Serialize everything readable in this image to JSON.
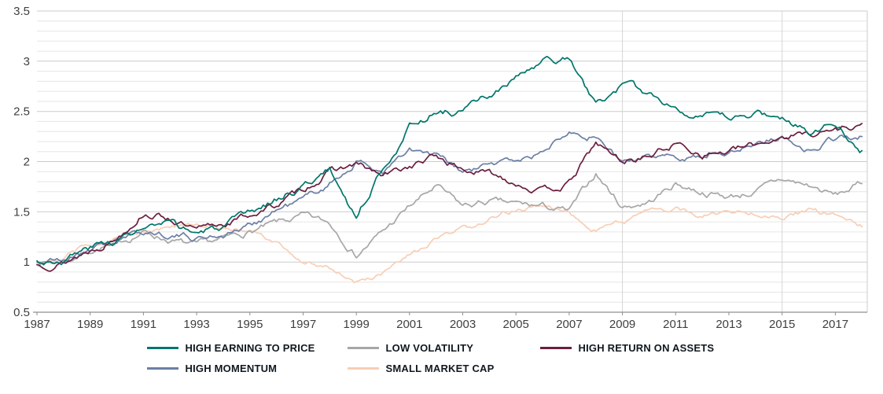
{
  "chart_data": {
    "type": "line",
    "title": "",
    "x": [
      1987,
      1988,
      1989,
      1990,
      1991,
      1992,
      1993,
      1994,
      1995,
      1996,
      1997,
      1998,
      1999,
      2000,
      2001,
      2002,
      2003,
      2004,
      2005,
      2006,
      2007,
      2008,
      2009,
      2010,
      2011,
      2012,
      2013,
      2014,
      2015,
      2016,
      2017,
      2018
    ],
    "series": [
      {
        "id": "high-earning-to-price",
        "name": "HIGH EARNING TO PRICE",
        "color": "#00766b",
        "values": [
          1.0,
          1.03,
          1.14,
          1.22,
          1.33,
          1.36,
          1.29,
          1.34,
          1.46,
          1.63,
          1.76,
          1.92,
          1.45,
          1.95,
          2.35,
          2.5,
          2.5,
          2.65,
          2.82,
          2.98,
          3.02,
          2.55,
          2.76,
          2.66,
          2.55,
          2.46,
          2.41,
          2.49,
          2.43,
          2.31,
          2.42,
          2.11
        ]
      },
      {
        "id": "low-volatility",
        "name": "LOW VOLATILITY",
        "color": "#a7a7a7",
        "values": [
          1.0,
          1.0,
          1.12,
          1.18,
          1.3,
          1.22,
          1.15,
          1.22,
          1.3,
          1.38,
          1.45,
          1.38,
          1.08,
          1.3,
          1.55,
          1.75,
          1.55,
          1.6,
          1.57,
          1.55,
          1.5,
          1.88,
          1.55,
          1.6,
          1.78,
          1.7,
          1.65,
          1.7,
          1.82,
          1.76,
          1.66,
          1.78
        ]
      },
      {
        "id": "high-return-on-assets",
        "name": "HIGH RETURN ON ASSETS",
        "color": "#6b1f3e",
        "values": [
          0.97,
          1.0,
          1.12,
          1.25,
          1.5,
          1.44,
          1.3,
          1.38,
          1.47,
          1.57,
          1.72,
          1.9,
          1.97,
          1.85,
          1.95,
          2.05,
          1.92,
          1.88,
          1.8,
          1.7,
          1.78,
          2.18,
          2.0,
          2.06,
          2.18,
          2.08,
          2.1,
          2.16,
          2.26,
          2.28,
          2.32,
          2.38
        ]
      },
      {
        "id": "high-momentum",
        "name": "HIGH MOMENTUM",
        "color": "#6c7fa5",
        "values": [
          1.0,
          1.02,
          1.14,
          1.2,
          1.3,
          1.28,
          1.24,
          1.28,
          1.36,
          1.52,
          1.62,
          1.78,
          2.0,
          1.9,
          2.1,
          2.05,
          1.88,
          1.96,
          2.02,
          2.08,
          2.35,
          2.25,
          2.0,
          2.02,
          2.06,
          2.06,
          2.12,
          2.18,
          2.26,
          2.12,
          2.24,
          2.25
        ]
      },
      {
        "id": "small-market-cap",
        "name": "SMALL MARKET CAP",
        "color": "#f8ceb5",
        "values": [
          1.02,
          1.06,
          1.18,
          1.24,
          1.32,
          1.36,
          1.36,
          1.35,
          1.3,
          1.18,
          1.0,
          0.95,
          0.8,
          0.88,
          1.05,
          1.22,
          1.32,
          1.42,
          1.52,
          1.55,
          1.5,
          1.33,
          1.42,
          1.5,
          1.52,
          1.46,
          1.5,
          1.5,
          1.46,
          1.5,
          1.46,
          1.35
        ]
      }
    ],
    "ylim": [
      0.5,
      3.5
    ],
    "yticks": [
      0.5,
      1,
      1.5,
      2,
      2.5,
      3,
      3.5
    ],
    "xticks": [
      1987,
      1989,
      1991,
      1993,
      1995,
      1997,
      1999,
      2001,
      2003,
      2005,
      2007,
      2009,
      2011,
      2013,
      2015,
      2017
    ],
    "xrange": [
      1987,
      2018.2
    ],
    "minor_grid_step": 0.1,
    "vertical_gridlines": [
      2009,
      2015
    ],
    "grid": "on",
    "legend_position": "bottom"
  }
}
